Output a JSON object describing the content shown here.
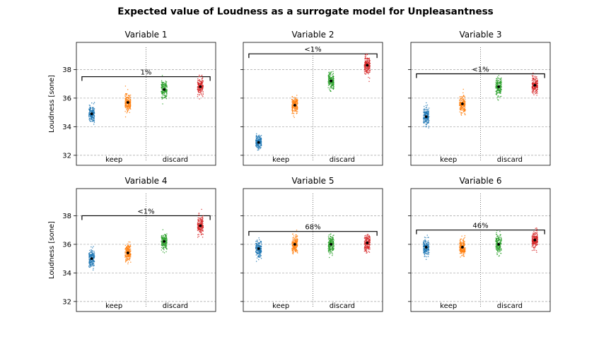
{
  "figure": {
    "title": "Expected value of Loudness as a surrogate model for Unpleasantness"
  },
  "chart_data": {
    "type": "scatter",
    "ylabel": "Loudness [sone]",
    "ylim": [
      31.3,
      39.9
    ],
    "yticks": [
      "32",
      "34",
      "36",
      "38"
    ],
    "grid": true,
    "group_labels": [
      "keep",
      "discard"
    ],
    "colors": [
      "#1f77b4",
      "#ff7f0e",
      "#2ca02c",
      "#d62728"
    ],
    "panels": [
      {
        "title": "Variable 1",
        "means": [
          34.9,
          35.7,
          36.6,
          36.8
        ],
        "spread": [
          0.3,
          0.3,
          0.3,
          0.3
        ],
        "significance": "1%",
        "bracket_y": 37.5
      },
      {
        "title": "Variable 2",
        "means": [
          32.9,
          35.5,
          37.2,
          38.3
        ],
        "spread": [
          0.25,
          0.3,
          0.3,
          0.3
        ],
        "significance": "<1%",
        "bracket_y": 39.1
      },
      {
        "title": "Variable 3",
        "means": [
          34.7,
          35.6,
          36.8,
          36.9
        ],
        "spread": [
          0.3,
          0.3,
          0.3,
          0.3
        ],
        "significance": "<1%",
        "bracket_y": 37.7
      },
      {
        "title": "Variable 4",
        "means": [
          35.0,
          35.4,
          36.2,
          37.3
        ],
        "spread": [
          0.3,
          0.3,
          0.3,
          0.3
        ],
        "significance": "<1%",
        "bracket_y": 38.0
      },
      {
        "title": "Variable 5",
        "means": [
          35.7,
          36.0,
          36.0,
          36.1
        ],
        "spread": [
          0.3,
          0.3,
          0.3,
          0.3
        ],
        "significance": "68%",
        "bracket_y": 36.9
      },
      {
        "title": "Variable 6",
        "means": [
          35.8,
          35.8,
          36.0,
          36.3
        ],
        "spread": [
          0.3,
          0.3,
          0.3,
          0.3
        ],
        "significance": "46%",
        "bracket_y": 37.0
      }
    ]
  }
}
